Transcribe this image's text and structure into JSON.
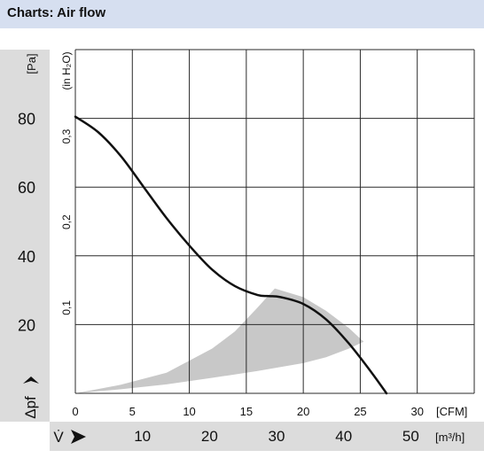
{
  "header": {
    "title": "Charts: Air flow"
  },
  "chart_data": {
    "type": "line",
    "title": "",
    "xlabel": "V̇",
    "ylabel": "Δpf",
    "x_axis_primary": {
      "unit": "[CFM]",
      "range": [
        0,
        35
      ],
      "ticks": [
        {
          "value": 0,
          "label": "0"
        },
        {
          "value": 5,
          "label": "5"
        },
        {
          "value": 10,
          "label": "10"
        },
        {
          "value": 15,
          "label": "15"
        },
        {
          "value": 20,
          "label": "20"
        },
        {
          "value": 25,
          "label": "25"
        },
        {
          "value": 30,
          "label": "30"
        }
      ]
    },
    "x_axis_secondary": {
      "unit": "[m³/h]",
      "ticks": [
        {
          "value": 10,
          "label": "10"
        },
        {
          "value": 20,
          "label": "20"
        },
        {
          "value": 30,
          "label": "30"
        },
        {
          "value": 40,
          "label": "40"
        },
        {
          "value": 50,
          "label": "50"
        }
      ]
    },
    "y_axis_primary": {
      "unit": "[Pa]",
      "range": [
        0,
        100
      ],
      "ticks": [
        {
          "value": 20,
          "label": "20"
        },
        {
          "value": 40,
          "label": "40"
        },
        {
          "value": 60,
          "label": "60"
        },
        {
          "value": 80,
          "label": "80"
        }
      ]
    },
    "y_axis_secondary": {
      "unit": "(in H₂O)",
      "ticks": [
        {
          "value": 0.1,
          "label": "0,1"
        },
        {
          "value": 0.2,
          "label": "0,2"
        },
        {
          "value": 0.3,
          "label": "0,3"
        }
      ]
    },
    "grid": true,
    "series": [
      {
        "x": [
          0,
          2,
          4,
          6,
          8,
          10,
          12,
          14,
          16,
          17,
          18,
          20,
          22,
          24,
          26,
          27.3
        ],
        "y": [
          80.5,
          76,
          69,
          60,
          51,
          43,
          36,
          31.2,
          28.6,
          28.3,
          28,
          26,
          21.5,
          14.5,
          6,
          0
        ]
      }
    ],
    "operating_range": {
      "upper_x": [
        0,
        4,
        8,
        12,
        14,
        16,
        17.5,
        20,
        22,
        24,
        25.3
      ],
      "upper_y": [
        0,
        2.5,
        6,
        13,
        18,
        25,
        30.5,
        28,
        24,
        19,
        15
      ],
      "lower_x": [
        25.3,
        24,
        22,
        20,
        16,
        12,
        8,
        4,
        0
      ],
      "lower_y": [
        15,
        13,
        10.5,
        8.8,
        6.5,
        4.5,
        2.6,
        1.2,
        0
      ]
    },
    "colors": {
      "curve": "#111111",
      "operating_range": "#c8c8c8",
      "grid": "#2a2a2a",
      "band": "#dcdcdc"
    }
  }
}
